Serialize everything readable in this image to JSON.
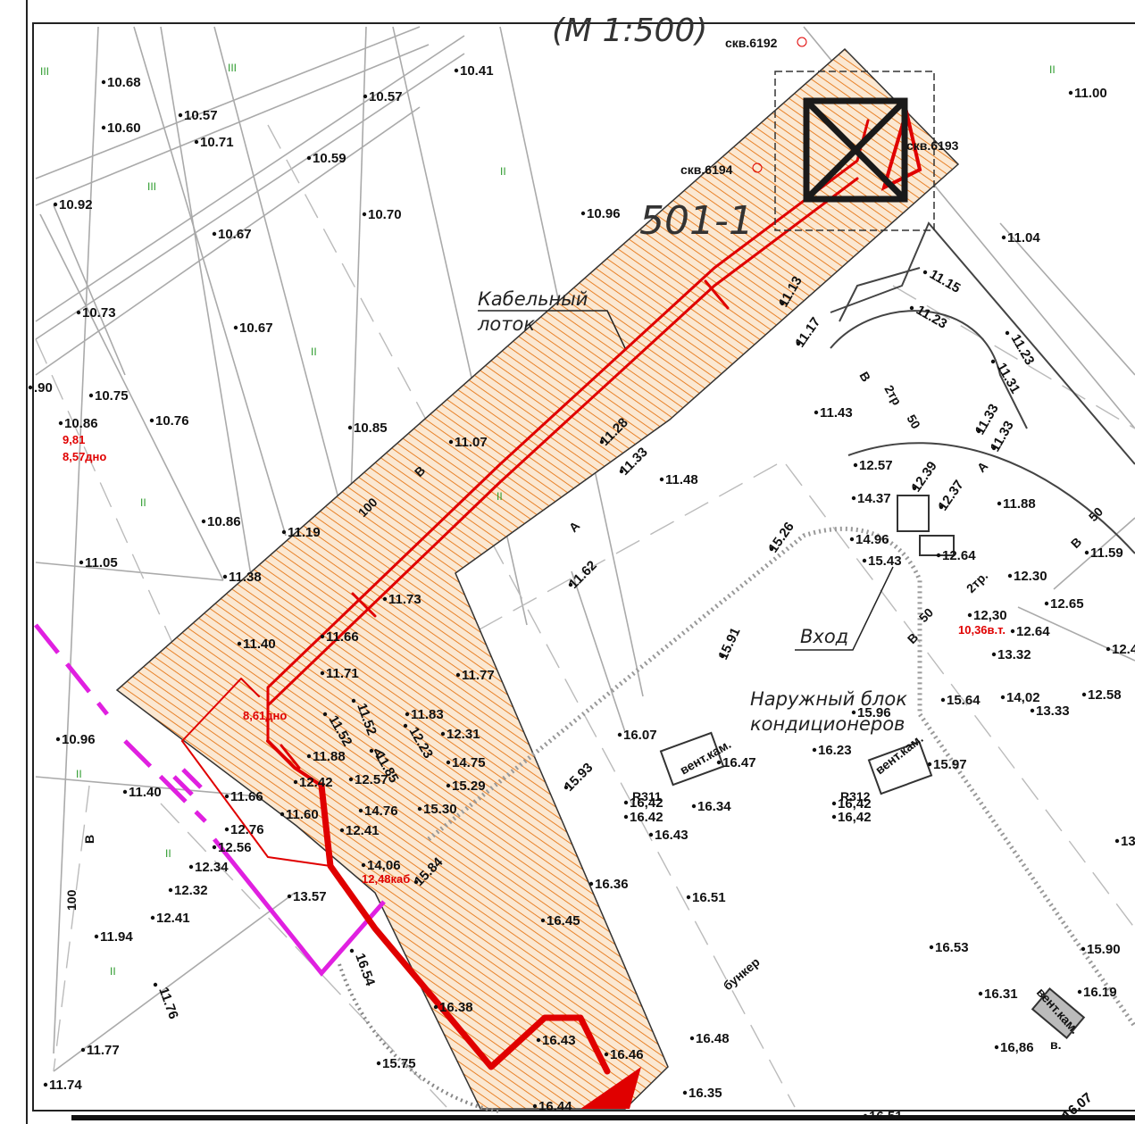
{
  "header": {
    "scale_label": "(М 1:500)",
    "sheet_label": "501-1"
  },
  "annotations": {
    "cable_tray_line1": "Кабельный",
    "cable_tray_line2": "лоток",
    "entrance": "Вход",
    "ac_unit_line1": "Наружный  блок",
    "ac_unit_line2": "кондиционеров",
    "bunker": "бункер"
  },
  "wells": {
    "skv_6192": "скв.6192",
    "skv_6193": "скв.6193",
    "skv_6194": "скв.6194"
  },
  "vent_chambers": {
    "vent1": "вент.кам.",
    "vent2": "вент.кам.",
    "vent3": "вент.кам.",
    "vent3_suffix": "в."
  },
  "benchmarks": {
    "r311": "R311",
    "r312": "R312"
  },
  "red_labels": {
    "w1_top": "9,81",
    "w1_bottom": "8,57дно",
    "w2": "8,61дно",
    "w3": "12,48каб",
    "w4": "10,36в.т."
  },
  "cable_marks": {
    "b_100": "В",
    "n100": "100",
    "a_1": "А",
    "a_2": "А",
    "b_2tr": "В",
    "tr2": "2тр",
    "n50": "50",
    "a_3": "А",
    "b_50": "В",
    "n50b": "50",
    "tr2b": "2тр.",
    "b_right": "В",
    "n50c": "50",
    "b_left": "В",
    "n100_left": "100"
  },
  "grass": "II",
  "grass3": "III",
  "elevations": [
    "10.68",
    "10.60",
    "10.57",
    "10.71",
    "10.59",
    "10.57",
    "10.41",
    "10.92",
    "10.67",
    "10.70",
    "10.96",
    "10.73",
    "10.67",
    ".90",
    "10.75",
    "10.86",
    "10.76",
    "10.85",
    "11.07",
    "10.86",
    "11.19",
    "11.05",
    "11.38",
    "11.73",
    "11.40",
    "11.66",
    "11.71",
    "11.77",
    "11.83",
    "11.52",
    "11.52",
    "11.85",
    "12.23",
    "12.31",
    "14.75",
    "15.29",
    "15.30",
    "11.88",
    "12.42",
    "12.57",
    "11.66",
    "11.60",
    "14.76",
    "12.41",
    "12.76",
    "12.56",
    "12.34",
    "12.32",
    "14,06",
    "13.57",
    "12.41",
    "15.84",
    "11.94",
    "16.54",
    "11.76",
    "16.38",
    "11.77",
    "15.75",
    "16.43",
    "16.46",
    "11.74",
    "16.48",
    "16.35",
    "16.44",
    "16.51",
    "16.07",
    "11.40",
    "10.96",
    "11.00",
    "11.04",
    "11.15",
    "11.13",
    "11.17",
    "11.23",
    "11.23",
    "11.31",
    "11.33",
    "11.33",
    "11.43",
    "11.28",
    "11.33",
    "11.48",
    "12.57",
    "12.39",
    "14.37",
    "12.37",
    "11.88",
    "14.96",
    "15.43",
    "12.64",
    "11.59",
    "12.30",
    "12.65",
    "12,30",
    "12.64",
    "13.32",
    "14,02",
    "13.33",
    "12.58",
    "15.26",
    "11.62",
    "15.91",
    "15.64",
    "15.96",
    "16.23",
    "16.07",
    "16.47",
    "15.97",
    "15.93",
    "16,42",
    "16.42",
    "16.34",
    "16,42",
    "16,42",
    "16.43",
    "16.36",
    "16.51",
    "16.45",
    "16.53",
    "15.90",
    "16.31",
    "16.19",
    "16,86",
    "13",
    "12.4",
    "16.07"
  ],
  "colors": {
    "cable_red": "#e00000",
    "hatch_orange": "#e8822a",
    "magenta": "#e020e0",
    "grid_gray": "#aaaaaa"
  }
}
